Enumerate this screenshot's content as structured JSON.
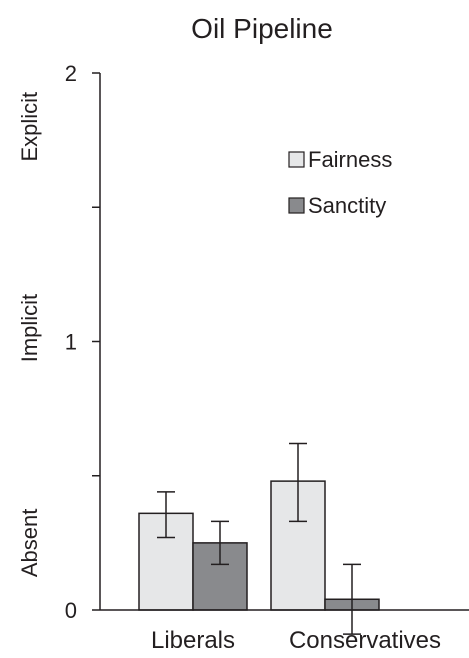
{
  "chart_data": {
    "type": "bar",
    "title": "Oil Pipeline",
    "categories": [
      "Liberals",
      "Conservatives"
    ],
    "series": [
      {
        "name": "Fairness",
        "color": "#e6e7e8",
        "values": [
          0.36,
          0.48
        ],
        "error_low": [
          0.27,
          0.33
        ],
        "error_high": [
          0.44,
          0.62
        ]
      },
      {
        "name": "Sanctity",
        "color": "#898a8d",
        "values": [
          0.25,
          0.04
        ],
        "error_low": [
          0.17,
          -0.09
        ],
        "error_high": [
          0.33,
          0.17
        ]
      }
    ],
    "ylim": [
      0,
      2
    ],
    "y_ticks": [
      0,
      0.5,
      1,
      1.5,
      2
    ],
    "y_tick_labels": [
      "0",
      "",
      "1",
      "",
      "2"
    ],
    "y_category_labels": [
      {
        "text": "Absent",
        "value": 0.25
      },
      {
        "text": "Implicit",
        "value": 1.05
      },
      {
        "text": "Explicit",
        "value": 1.8
      }
    ],
    "legend_position": "top-right",
    "grid": false
  }
}
